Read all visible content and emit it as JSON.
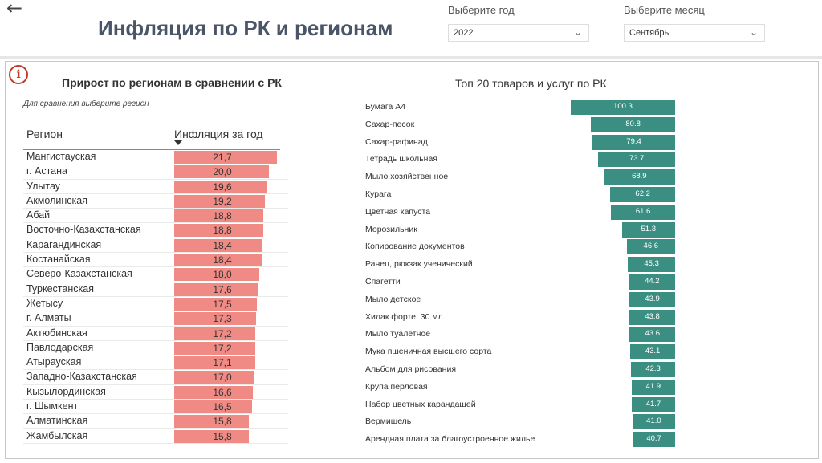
{
  "header": {
    "back_icon": "arrow-left-icon",
    "title": "Инфляция по РК и регионам",
    "year_label": "Выберите год",
    "year_value": "2022",
    "month_label": "Выберите месяц",
    "month_value": "Сентябрь"
  },
  "left": {
    "title": "Прирост по регионам в сравнении с РК",
    "subtitle": "Для сравнения выберите регион",
    "col_region": "Регион",
    "col_inflation": "Инфляция за год",
    "rows": [
      {
        "region": "Мангистауская",
        "value": "21,7",
        "num": 21.7
      },
      {
        "region": "г. Астана",
        "value": "20,0",
        "num": 20.0
      },
      {
        "region": "Улытау",
        "value": "19,6",
        "num": 19.6
      },
      {
        "region": "Акмолинская",
        "value": "19,2",
        "num": 19.2
      },
      {
        "region": "Абай",
        "value": "18,8",
        "num": 18.8
      },
      {
        "region": "Восточно-Казахстанская",
        "value": "18,8",
        "num": 18.8
      },
      {
        "region": "Карагандинская",
        "value": "18,4",
        "num": 18.4
      },
      {
        "region": "Костанайская",
        "value": "18,4",
        "num": 18.4
      },
      {
        "region": "Северо-Казахстанская",
        "value": "18,0",
        "num": 18.0
      },
      {
        "region": "Туркестанская",
        "value": "17,6",
        "num": 17.6
      },
      {
        "region": "Жетысу",
        "value": "17,5",
        "num": 17.5
      },
      {
        "region": "г. Алматы",
        "value": "17,3",
        "num": 17.3
      },
      {
        "region": "Актюбинская",
        "value": "17,2",
        "num": 17.2
      },
      {
        "region": "Павлодарская",
        "value": "17,2",
        "num": 17.2
      },
      {
        "region": "Атырауская",
        "value": "17,1",
        "num": 17.1
      },
      {
        "region": "Западно-Казахстанская",
        "value": "17,0",
        "num": 17.0
      },
      {
        "region": "Кызылординская",
        "value": "16,6",
        "num": 16.6
      },
      {
        "region": "г. Шымкент",
        "value": "16,5",
        "num": 16.5
      },
      {
        "region": "Алматинская",
        "value": "15,8",
        "num": 15.8
      },
      {
        "region": "Жамбылская",
        "value": "15,8",
        "num": 15.8
      }
    ]
  },
  "right": {
    "title": "Топ 20 товаров и услуг по РК",
    "items": [
      {
        "name": "Бумага А4",
        "value": "100.3",
        "num": 100.3
      },
      {
        "name": "Сахар-песок",
        "value": "80.8",
        "num": 80.8
      },
      {
        "name": "Сахар-рафинад",
        "value": "79.4",
        "num": 79.4
      },
      {
        "name": "Тетрадь школьная",
        "value": "73.7",
        "num": 73.7
      },
      {
        "name": "Мыло хозяйственное",
        "value": "68.9",
        "num": 68.9
      },
      {
        "name": "Курага",
        "value": "62.2",
        "num": 62.2
      },
      {
        "name": "Цветная капуста",
        "value": "61.6",
        "num": 61.6
      },
      {
        "name": "Морозильник",
        "value": "51.3",
        "num": 51.3
      },
      {
        "name": "Копирование документов",
        "value": "46.6",
        "num": 46.6
      },
      {
        "name": "Ранец, рюкзак ученический",
        "value": "45.3",
        "num": 45.3
      },
      {
        "name": "Спагетти",
        "value": "44.2",
        "num": 44.2
      },
      {
        "name": "Мыло детское",
        "value": "43.9",
        "num": 43.9
      },
      {
        "name": "Хилак форте, 30 мл",
        "value": "43.8",
        "num": 43.8
      },
      {
        "name": "Мыло туалетное",
        "value": "43.6",
        "num": 43.6
      },
      {
        "name": "Мука пшеничная высшего сорта",
        "value": "43.1",
        "num": 43.1
      },
      {
        "name": "Альбом для рисования",
        "value": "42.3",
        "num": 42.3
      },
      {
        "name": "Крупа перловая",
        "value": "41.9",
        "num": 41.9
      },
      {
        "name": "Набор цветных карандашей",
        "value": "41.7",
        "num": 41.7
      },
      {
        "name": "Вермишель",
        "value": "41.0",
        "num": 41.0
      },
      {
        "name": "Арендная плата за благоустроенное жилье",
        "value": "40.7",
        "num": 40.7
      }
    ]
  },
  "colors": {
    "region_bar": "#f08a84",
    "item_bar": "#3a8f82",
    "info": "#c0392b"
  },
  "chart_data": [
    {
      "type": "bar",
      "title": "Прирост по регионам в сравнении с РК",
      "xlabel": "",
      "ylabel": "Инфляция за год",
      "categories": [
        "Мангистауская",
        "г. Астана",
        "Улытау",
        "Акмолинская",
        "Абай",
        "Восточно-Казахстанская",
        "Карагандинская",
        "Костанайская",
        "Северо-Казахстанская",
        "Туркестанская",
        "Жетысу",
        "г. Алматы",
        "Актюбинская",
        "Павлодарская",
        "Атырауская",
        "Западно-Казахстанская",
        "Кызылординская",
        "г. Шымкент",
        "Алматинская",
        "Жамбылская"
      ],
      "values": [
        21.7,
        20.0,
        19.6,
        19.2,
        18.8,
        18.8,
        18.4,
        18.4,
        18.0,
        17.6,
        17.5,
        17.3,
        17.2,
        17.2,
        17.1,
        17.0,
        16.6,
        16.5,
        15.8,
        15.8
      ]
    },
    {
      "type": "bar",
      "title": "Топ 20 товаров и услуг по РК",
      "xlabel": "",
      "ylabel": "",
      "categories": [
        "Бумага А4",
        "Сахар-песок",
        "Сахар-рафинад",
        "Тетрадь школьная",
        "Мыло хозяйственное",
        "Курага",
        "Цветная капуста",
        "Морозильник",
        "Копирование документов",
        "Ранец, рюкзак ученический",
        "Спагетти",
        "Мыло детское",
        "Хилак форте, 30 мл",
        "Мыло туалетное",
        "Мука пшеничная высшего сорта",
        "Альбом для рисования",
        "Крупа перловая",
        "Набор цветных карандашей",
        "Вермишель",
        "Арендная плата за благоустроенное жилье"
      ],
      "values": [
        100.3,
        80.8,
        79.4,
        73.7,
        68.9,
        62.2,
        61.6,
        51.3,
        46.6,
        45.3,
        44.2,
        43.9,
        43.8,
        43.6,
        43.1,
        42.3,
        41.9,
        41.7,
        41.0,
        40.7
      ]
    }
  ]
}
